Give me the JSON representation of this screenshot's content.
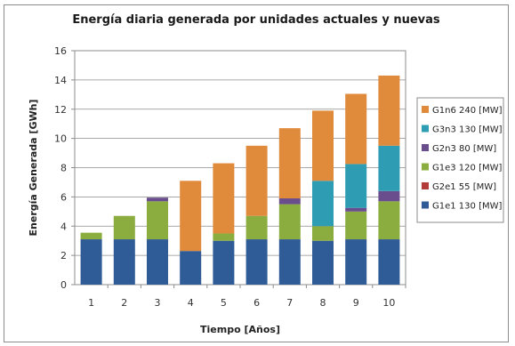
{
  "chart_data": {
    "type": "bar",
    "stacked": true,
    "title": "Energía diaria generada por unidades actuales y nuevas",
    "xlabel": "Tiempo [Años]",
    "ylabel": "Energía Generada [GWh]",
    "ylim": [
      0,
      16
    ],
    "yticks": [
      "0",
      "2",
      "4",
      "6",
      "8",
      "10",
      "12",
      "14",
      "16"
    ],
    "categories": [
      "1",
      "2",
      "3",
      "4",
      "5",
      "6",
      "7",
      "8",
      "9",
      "10"
    ],
    "grid": true,
    "legend_position": "right",
    "series": [
      {
        "name": "G1e1 130 [MW]",
        "color": "#2f5b96",
        "values": [
          3.1,
          3.1,
          3.1,
          2.3,
          3.0,
          3.1,
          3.1,
          3.0,
          3.1,
          3.1
        ]
      },
      {
        "name": "G2e1 55 [MW]",
        "color": "#b23c3a",
        "values": [
          0,
          0,
          0,
          0,
          0,
          0,
          0,
          0,
          0,
          0
        ]
      },
      {
        "name": "G1e3 120 [MW]",
        "color": "#8bad3f",
        "values": [
          0.45,
          1.6,
          2.6,
          0,
          0.5,
          1.6,
          2.4,
          1.0,
          1.9,
          2.6
        ]
      },
      {
        "name": "G2n3 80 [MW]",
        "color": "#6a4d8c",
        "values": [
          0,
          0,
          0.25,
          0,
          0,
          0,
          0.4,
          0,
          0.25,
          0.7
        ]
      },
      {
        "name": "G3n3 130 [MW]",
        "color": "#2e9db3",
        "values": [
          0,
          0,
          0,
          0,
          0,
          0,
          0,
          3.1,
          3.0,
          3.1
        ]
      },
      {
        "name": "G1n6 240 [MW]",
        "color": "#e08a3c",
        "values": [
          0,
          0,
          0,
          4.8,
          4.8,
          4.8,
          4.8,
          4.8,
          4.8,
          4.8
        ]
      }
    ]
  }
}
